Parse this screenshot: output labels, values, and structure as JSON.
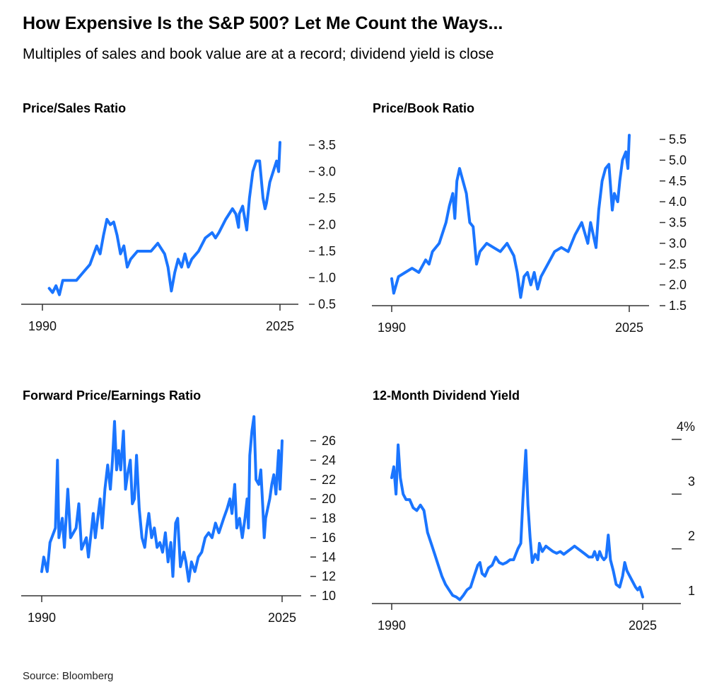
{
  "title": "How Expensive Is the S&P 500? Let Me Count the Ways...",
  "subtitle": "Multiples of sales and book value are at a record; dividend yield is close",
  "source": "Source: Bloomberg",
  "colors": {
    "line": "#1a75ff",
    "axis": "#333333"
  },
  "chart_data": [
    {
      "type": "line",
      "title": "Price/Sales Ratio",
      "x_ticks": [
        "1990",
        "2025"
      ],
      "xlim": [
        1990,
        2025
      ],
      "ylim": [
        0.5,
        3.5
      ],
      "y_ticks": [
        0.5,
        1.0,
        1.5,
        2.0,
        2.5,
        3.0,
        3.5
      ],
      "y_tick_labels": [
        "0.5",
        "1.0",
        "1.5",
        "2.0",
        "2.5",
        "3.0",
        "3.5"
      ],
      "y_axis_side": "right",
      "x": [
        1991,
        1991.5,
        1992,
        1992.5,
        1993,
        1994,
        1995,
        1996,
        1997,
        1998,
        1998.5,
        1999,
        1999.5,
        2000,
        2000.5,
        2001,
        2001.5,
        2002,
        2002.5,
        2003,
        2004,
        2005,
        2006,
        2007,
        2008,
        2008.5,
        2009,
        2009.5,
        2010,
        2010.5,
        2011,
        2011.5,
        2012,
        2013,
        2014,
        2015,
        2015.5,
        2016,
        2017,
        2018,
        2018.5,
        2018.9,
        2019,
        2019.5,
        2020.1,
        2020.5,
        2021,
        2021.5,
        2022,
        2022.5,
        2022.8,
        2023,
        2023.5,
        2024,
        2024.5,
        2024.8,
        2025
      ],
      "y": [
        0.8,
        0.72,
        0.85,
        0.68,
        0.95,
        0.95,
        0.95,
        1.1,
        1.25,
        1.6,
        1.45,
        1.8,
        2.1,
        2.0,
        2.05,
        1.8,
        1.45,
        1.6,
        1.2,
        1.35,
        1.5,
        1.5,
        1.5,
        1.65,
        1.45,
        1.2,
        0.75,
        1.1,
        1.35,
        1.2,
        1.45,
        1.2,
        1.35,
        1.5,
        1.75,
        1.85,
        1.75,
        1.85,
        2.1,
        2.3,
        2.2,
        1.95,
        2.2,
        2.35,
        1.9,
        2.5,
        3.0,
        3.2,
        3.2,
        2.5,
        2.3,
        2.4,
        2.8,
        3.0,
        3.2,
        3.0,
        3.55
      ]
    },
    {
      "type": "line",
      "title": "Price/Book Ratio",
      "x_ticks": [
        "1990",
        "2025"
      ],
      "xlim": [
        1990,
        2025
      ],
      "ylim": [
        1.5,
        5.5
      ],
      "y_ticks": [
        1.5,
        2.0,
        2.5,
        3.0,
        3.5,
        4.0,
        4.5,
        5.0,
        5.5
      ],
      "y_tick_labels": [
        "1.5",
        "2.0",
        "2.5",
        "3.0",
        "3.5",
        "4.0",
        "4.5",
        "5.0",
        "5.5"
      ],
      "y_axis_side": "right",
      "x": [
        1990,
        1990.3,
        1991,
        1992,
        1993,
        1994,
        1995,
        1995.5,
        1996,
        1997,
        1998,
        1998.5,
        1999,
        1999.3,
        1999.6,
        2000,
        2000.5,
        2001,
        2001.5,
        2002,
        2002.5,
        2003,
        2004,
        2005,
        2006,
        2007,
        2008,
        2008.5,
        2009,
        2009.5,
        2010,
        2010.5,
        2011,
        2011.5,
        2012,
        2013,
        2014,
        2015,
        2016,
        2017,
        2018,
        2018.9,
        2019.3,
        2020.1,
        2020.5,
        2021,
        2021.5,
        2022,
        2022.5,
        2022.8,
        2023.3,
        2023.6,
        2024,
        2024.5,
        2024.8,
        2025
      ],
      "y": [
        2.15,
        1.8,
        2.2,
        2.3,
        2.4,
        2.3,
        2.6,
        2.5,
        2.8,
        3.0,
        3.5,
        3.9,
        4.2,
        3.6,
        4.5,
        4.8,
        4.5,
        4.2,
        3.5,
        3.4,
        2.5,
        2.8,
        3.0,
        2.9,
        2.8,
        3.0,
        2.7,
        2.3,
        1.7,
        2.2,
        2.3,
        2.0,
        2.3,
        1.9,
        2.2,
        2.5,
        2.8,
        2.9,
        2.8,
        3.2,
        3.5,
        3.0,
        3.5,
        2.9,
        3.8,
        4.5,
        4.8,
        4.9,
        3.8,
        4.2,
        4.0,
        4.5,
        5.0,
        5.2,
        4.8,
        5.6
      ]
    },
    {
      "type": "line",
      "title": "Forward Price/Earnings Ratio",
      "x_ticks": [
        "1990",
        "2025"
      ],
      "xlim": [
        1990,
        2025
      ],
      "ylim": [
        10,
        26
      ],
      "y_ticks": [
        10,
        12,
        14,
        16,
        18,
        20,
        22,
        24,
        26
      ],
      "y_tick_labels": [
        "10",
        "12",
        "14",
        "16",
        "18",
        "20",
        "22",
        "24",
        "26"
      ],
      "y_axis_side": "right",
      "x": [
        1990,
        1990.3,
        1990.8,
        1991.2,
        1992,
        1992.3,
        1992.5,
        1993,
        1993.3,
        1993.8,
        1994.2,
        1995,
        1995.4,
        1995.8,
        1996.5,
        1996.8,
        1997.5,
        1997.8,
        1998.5,
        1998.8,
        1999.2,
        1999.6,
        2000,
        2000.3,
        2000.6,
        2000.9,
        2001.2,
        2001.5,
        2001.9,
        2002.2,
        2002.5,
        2002.9,
        2003.2,
        2003.5,
        2003.8,
        2004.2,
        2004.6,
        2005,
        2005.3,
        2005.6,
        2006,
        2006.4,
        2006.8,
        2007.2,
        2007.6,
        2008,
        2008.4,
        2008.8,
        2009.1,
        2009.5,
        2009.8,
        2010.2,
        2010.7,
        2011,
        2011.4,
        2011.8,
        2012.3,
        2012.8,
        2013.3,
        2013.8,
        2014.3,
        2014.8,
        2015.3,
        2015.8,
        2016.5,
        2017,
        2017.4,
        2017.7,
        2018.1,
        2018.4,
        2018.8,
        2019.2,
        2019.6,
        2019.9,
        2020.1,
        2020.3,
        2020.6,
        2020.9,
        2021.2,
        2021.6,
        2021.9,
        2022.2,
        2022.4,
        2022.6,
        2022.9,
        2023.2,
        2023.5,
        2023.8,
        2024.1,
        2024.5,
        2024.7,
        2024.9,
        2025
      ],
      "y": [
        12.5,
        14,
        12.5,
        15.5,
        17,
        24,
        16,
        18,
        15,
        21,
        16,
        17,
        19.5,
        14.8,
        16,
        14,
        18.5,
        16,
        20,
        17,
        21,
        23.5,
        21,
        24,
        28,
        23,
        25,
        23,
        27,
        21,
        22.5,
        24,
        19.5,
        20,
        24.5,
        19,
        16,
        15,
        17,
        18.5,
        16,
        17,
        15,
        15.5,
        14.5,
        16.5,
        13.5,
        15.5,
        12,
        17.5,
        18,
        13,
        14.5,
        13.5,
        11.5,
        13.5,
        12.5,
        14,
        14.5,
        16,
        16.5,
        16,
        17.5,
        16.5,
        18,
        19,
        20,
        18.5,
        21.5,
        17,
        18,
        16,
        18,
        20,
        17,
        24.5,
        27,
        28.5,
        22,
        21.5,
        23,
        19,
        16,
        18,
        19,
        20,
        21.5,
        22.5,
        20.5,
        25,
        21,
        24,
        26
      ]
    },
    {
      "type": "line",
      "title": "12-Month Dividend Yield",
      "x_ticks": [
        "1990",
        "2025"
      ],
      "xlim": [
        1990,
        2025
      ],
      "ylim": [
        1,
        4
      ],
      "y_ticks": [
        1,
        2,
        3,
        4
      ],
      "y_tick_labels": [
        "1",
        "2",
        "3",
        "4%"
      ],
      "y_axis_side": "right",
      "x": [
        1990,
        1990.3,
        1990.6,
        1990.9,
        1991.2,
        1991.6,
        1992,
        1992.5,
        1993,
        1993.5,
        1994,
        1994.5,
        1995,
        1995.5,
        1996,
        1996.5,
        1997,
        1997.5,
        1998,
        1998.5,
        1999,
        1999.5,
        2000,
        2000.5,
        2001,
        2001.5,
        2002,
        2002.3,
        2002.6,
        2003,
        2003.5,
        2004,
        2004.5,
        2005,
        2005.5,
        2006,
        2006.5,
        2007,
        2007.6,
        2008,
        2008.3,
        2008.7,
        2009,
        2009.3,
        2009.6,
        2010,
        2010.4,
        2010.6,
        2011,
        2011.5,
        2012,
        2012.5,
        2013,
        2013.5,
        2014,
        2014.5,
        2015,
        2015.5,
        2016,
        2016.5,
        2017,
        2017.5,
        2018,
        2018.3,
        2018.7,
        2019,
        2019.3,
        2019.6,
        2019.9,
        2020.2,
        2020.5,
        2020.9,
        2021.3,
        2021.8,
        2022.2,
        2022.5,
        2022.8,
        2023.2,
        2023.6,
        2024,
        2024.3,
        2024.6,
        2025
      ],
      "y": [
        3.3,
        3.5,
        3.0,
        3.9,
        3.3,
        3.0,
        2.9,
        2.9,
        2.75,
        2.7,
        2.8,
        2.7,
        2.3,
        2.1,
        1.9,
        1.7,
        1.5,
        1.35,
        1.25,
        1.15,
        1.12,
        1.07,
        1.15,
        1.25,
        1.3,
        1.5,
        1.7,
        1.75,
        1.55,
        1.5,
        1.65,
        1.7,
        1.85,
        1.75,
        1.72,
        1.75,
        1.8,
        1.8,
        2.0,
        2.1,
        2.9,
        3.8,
        2.8,
        2.2,
        1.75,
        1.9,
        1.8,
        2.1,
        1.95,
        2.05,
        2.0,
        1.95,
        1.92,
        1.95,
        1.9,
        1.95,
        2.0,
        2.05,
        2.0,
        1.95,
        1.9,
        1.85,
        1.85,
        1.95,
        1.8,
        1.95,
        1.85,
        1.8,
        1.85,
        2.25,
        1.8,
        1.6,
        1.35,
        1.3,
        1.5,
        1.75,
        1.6,
        1.5,
        1.4,
        1.3,
        1.25,
        1.3,
        1.12
      ]
    }
  ]
}
